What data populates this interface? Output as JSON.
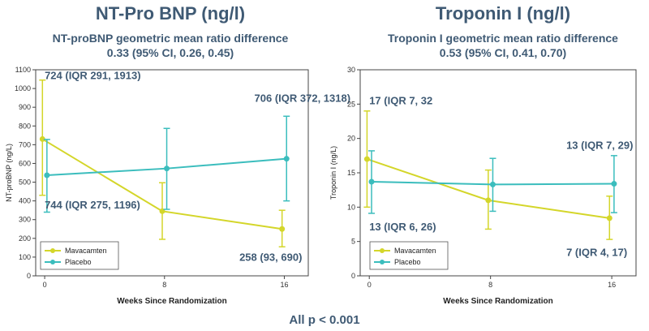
{
  "footer": "All p < 0.001",
  "chart_data": [
    {
      "type": "line",
      "title": "NT-Pro BNP (ng/l)",
      "subtitle_line1": "NT-proBNP geometric mean ratio difference",
      "subtitle_line2": "0.33 (95% CI, 0.26, 0.45)",
      "xlabel": "Weeks Since Randomization",
      "ylabel": "NT-proBNP (ng/L)",
      "x": [
        0,
        8,
        16
      ],
      "x_ticks": [
        "0",
        "8",
        "16"
      ],
      "ylim": [
        0,
        1100
      ],
      "y_ticks": [
        0,
        100,
        200,
        300,
        400,
        500,
        600,
        700,
        800,
        900,
        1000,
        1100
      ],
      "series": [
        {
          "name": "Mavacamten",
          "color": "#d4d62a",
          "values": [
            730,
            345,
            250
          ],
          "lower": [
            430,
            195,
            155
          ],
          "upper": [
            1045,
            497,
            350
          ],
          "x_offset": -0.15
        },
        {
          "name": "Placebo",
          "color": "#3bbdbd",
          "values": [
            537,
            573,
            625
          ],
          "lower": [
            340,
            355,
            400
          ],
          "upper": [
            728,
            787,
            852
          ],
          "x_offset": 0.15
        }
      ],
      "annotations": [
        {
          "text": "724 (IQR 291, 1913)",
          "x": 0,
          "y": 1050
        },
        {
          "text": "706 (IQR 372, 1318)",
          "x": 14,
          "y": 930
        },
        {
          "text": "744 (IQR 275, 1196)",
          "x": 0,
          "y": 360
        },
        {
          "text": "258 (93, 690)",
          "x": 13,
          "y": 80
        }
      ]
    },
    {
      "type": "line",
      "title": "Troponin I (ng/l)",
      "subtitle_line1": "Troponin I geometric mean ratio difference",
      "subtitle_line2": "0.53 (95% CI, 0.41, 0.70)",
      "xlabel": "Weeks Since Randomization",
      "ylabel": "Troponin I (ng/L)",
      "x": [
        0,
        8,
        16
      ],
      "x_ticks": [
        "0",
        "8",
        "16"
      ],
      "ylim": [
        0,
        30
      ],
      "y_ticks": [
        0,
        5,
        10,
        15,
        20,
        25,
        30
      ],
      "series": [
        {
          "name": "Mavacamten",
          "color": "#d4d62a",
          "values": [
            17,
            11,
            8.4
          ],
          "lower": [
            10,
            6.8,
            5.3
          ],
          "upper": [
            24,
            15.4,
            11.6
          ],
          "x_offset": -0.15
        },
        {
          "name": "Placebo",
          "color": "#3bbdbd",
          "values": [
            13.7,
            13.3,
            13.4
          ],
          "lower": [
            9.1,
            9.4,
            9.2
          ],
          "upper": [
            18.2,
            17.1,
            17.5
          ],
          "x_offset": 0.15
        }
      ],
      "annotations": [
        {
          "text": "17 (IQR 7, 32",
          "x": 0,
          "y": 25
        },
        {
          "text": "13 (IQR 7, 29)",
          "x": 13,
          "y": 18.5
        },
        {
          "text": "13 (IQR 6, 26)",
          "x": 0,
          "y": 6.6
        },
        {
          "text": "7 (IQR 4, 17)",
          "x": 13,
          "y": 2.9
        }
      ]
    }
  ]
}
